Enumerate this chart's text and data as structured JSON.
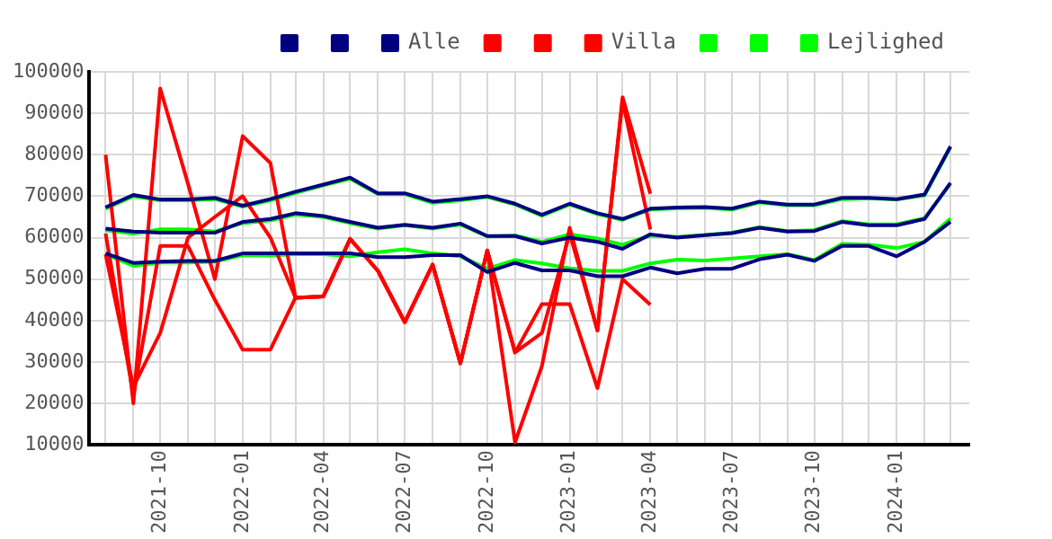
{
  "chart_data": {
    "type": "line",
    "x": [
      "2021-08",
      "2021-09",
      "2021-10",
      "2021-11",
      "2021-12",
      "2022-01",
      "2022-02",
      "2022-03",
      "2022-04",
      "2022-05",
      "2022-06",
      "2022-07",
      "2022-08",
      "2022-09",
      "2022-10",
      "2022-11",
      "2022-12",
      "2023-01",
      "2023-02",
      "2023-03",
      "2023-04",
      "2023-05",
      "2023-06",
      "2023-07",
      "2023-08",
      "2023-09",
      "2023-10",
      "2023-11",
      "2023-12",
      "2024-01",
      "2024-02",
      "2024-03"
    ],
    "xlim": [
      "2021-07-14",
      "2024-03-22"
    ],
    "xticks": [
      {
        "value": "2021-08",
        "label": null
      },
      {
        "value": "2021-09",
        "label": null
      },
      "2021-10",
      {
        "value": "2021-11",
        "label": null
      },
      {
        "value": "2021-12",
        "label": null
      },
      "2022-01",
      {
        "value": "2022-02",
        "label": null
      },
      {
        "value": "2022-03",
        "label": null
      },
      "2022-04",
      {
        "value": "2022-05",
        "label": null
      },
      {
        "value": "2022-06",
        "label": null
      },
      "2022-07",
      {
        "value": "2022-08",
        "label": null
      },
      {
        "value": "2022-09",
        "label": null
      },
      "2022-10",
      {
        "value": "2022-11",
        "label": null
      },
      {
        "value": "2022-12",
        "label": null
      },
      "2023-01",
      {
        "value": "2023-02",
        "label": null
      },
      {
        "value": "2023-03",
        "label": null
      },
      "2023-04",
      {
        "value": "2023-05",
        "label": null
      },
      {
        "value": "2023-06",
        "label": null
      },
      "2023-07",
      {
        "value": "2023-08",
        "label": null
      },
      {
        "value": "2023-09",
        "label": null
      },
      "2023-10",
      {
        "value": "2023-11",
        "label": null
      },
      {
        "value": "2023-12",
        "label": null
      },
      "2024-01",
      {
        "value": "2024-02",
        "label": null
      },
      {
        "value": "2024-03",
        "label": null
      }
    ],
    "ylim": [
      10000,
      100000
    ],
    "yticks": [
      10000,
      20000,
      30000,
      40000,
      50000,
      60000,
      70000,
      80000,
      90000,
      100000
    ],
    "grid": true,
    "legend": "top right",
    "series": [
      {
        "color": "#000080",
        "values": [
          67300,
          70300,
          69200,
          69200,
          69600,
          67700,
          69300,
          71100,
          72800,
          74500,
          70700,
          70700,
          68700,
          69300,
          70000,
          68200,
          65500,
          68200,
          65900,
          64500,
          67000,
          67300,
          67400,
          67000,
          68700,
          68000,
          68000,
          69600,
          69600,
          69300,
          70400,
          82000
        ]
      },
      {
        "color": "#000080",
        "values": [
          62200,
          61500,
          61200,
          61200,
          61200,
          63800,
          64500,
          65900,
          65200,
          63800,
          62400,
          63100,
          62400,
          63400,
          60400,
          60400,
          58600,
          60000,
          59000,
          57300,
          60800,
          60000,
          60600,
          61100,
          62400,
          61500,
          61600,
          63800,
          63000,
          63000,
          64500,
          73200
        ]
      },
      {
        "name": "Alle",
        "color": "#000080",
        "values": [
          56200,
          53900,
          54200,
          54400,
          54400,
          56200,
          56200,
          56200,
          56200,
          56200,
          55300,
          55300,
          55800,
          55800,
          51700,
          53900,
          52100,
          52100,
          50700,
          50700,
          52800,
          51400,
          52500,
          52500,
          54800,
          55900,
          54400,
          58000,
          58000,
          55500,
          59000,
          63800
        ]
      },
      {
        "color": "#ff0000",
        "values": [
          80000,
          20000,
          96000,
          73000,
          50000,
          84500,
          78000,
          45500,
          45800,
          59700,
          52000,
          39600,
          53500,
          29700,
          56900,
          10600,
          29000,
          62400,
          37600,
          93900,
          70600,
          null,
          null,
          null,
          null,
          null,
          null,
          null,
          null,
          null,
          null,
          null
        ]
      },
      {
        "color": "#ff0000",
        "values": [
          61000,
          22000,
          58000,
          58000,
          45000,
          33000,
          33000,
          45500,
          45800,
          59700,
          52000,
          39600,
          53500,
          29700,
          56900,
          32300,
          44000,
          44000,
          23700,
          50000,
          43800,
          null,
          null,
          null,
          null,
          null,
          null,
          null,
          null,
          null,
          null,
          null
        ]
      },
      {
        "name": "Villa",
        "color": "#ff0000",
        "values": [
          56000,
          24000,
          37000,
          60000,
          65000,
          70000,
          60000,
          45500,
          45800,
          59700,
          52000,
          39600,
          53500,
          29700,
          56900,
          32300,
          37000,
          61000,
          37600,
          93000,
          62000,
          null,
          null,
          null,
          null,
          null,
          null,
          null,
          null,
          null,
          null,
          null
        ]
      },
      {
        "color": "#00ff00",
        "values": [
          67000,
          70000,
          69000,
          69000,
          69300,
          67500,
          69000,
          70800,
          72600,
          74200,
          70500,
          70500,
          68400,
          69000,
          69800,
          68000,
          65300,
          68000,
          65700,
          64300,
          66800,
          67100,
          67200,
          66800,
          68500,
          67800,
          67800,
          69300,
          69500,
          69200,
          70200,
          81800
        ]
      },
      {
        "color": "#00ff00",
        "values": [
          61800,
          61000,
          62000,
          62000,
          61500,
          63500,
          64200,
          65600,
          65000,
          63500,
          62200,
          63000,
          62200,
          63200,
          60300,
          60500,
          59000,
          60800,
          59800,
          58300,
          60500,
          60200,
          60600,
          61200,
          62500,
          61600,
          61800,
          64000,
          63200,
          63200,
          64700,
          73000
        ]
      },
      {
        "name": "Lejlighed",
        "color": "#00ff00",
        "values": [
          56000,
          53200,
          54000,
          54000,
          54200,
          55800,
          55700,
          56000,
          56000,
          55500,
          56500,
          57200,
          56200,
          55500,
          52500,
          54600,
          53800,
          52600,
          52000,
          52000,
          53800,
          54700,
          54500,
          55000,
          55500,
          56000,
          54600,
          58500,
          58300,
          57500,
          59000,
          64600
        ]
      }
    ]
  }
}
